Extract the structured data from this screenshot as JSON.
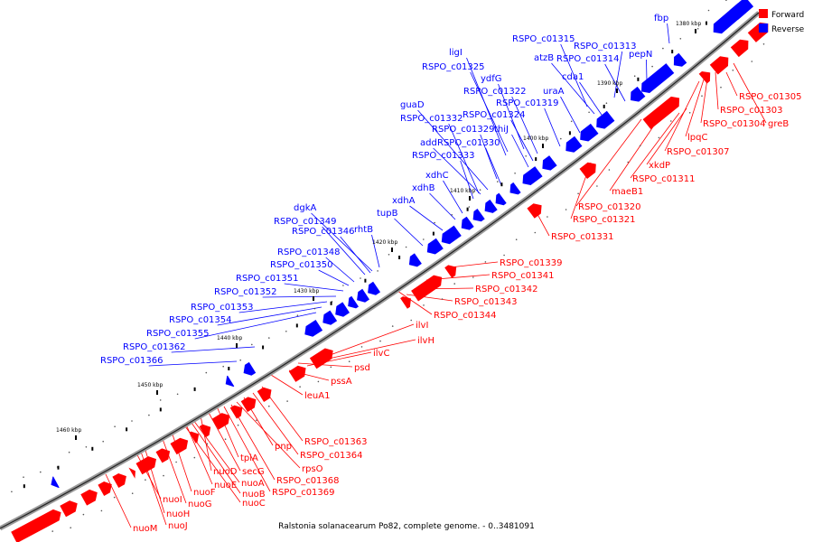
{
  "caption": "Ralstonia solanacearum Po82, complete genome. - 0..3481091",
  "legend": {
    "forward_label": "Forward",
    "reverse_label": "Reverse",
    "forward_color": "#ff0000",
    "reverse_color": "#0000ff"
  },
  "ticks": [
    "1380 kbp",
    "1390 kbp",
    "1400 kbp",
    "1410 kbp",
    "1420 kbp",
    "1430 kbp",
    "1440 kbp",
    "1450 kbp",
    "1460 kbp"
  ],
  "reverse_labels": [
    "fbp",
    "pepN",
    "RSPO_c01315",
    "RSPO_c01313",
    "atzB",
    "RSPO_c01314",
    "ligI",
    "RSPO_c01325",
    "ydfG",
    "cda1",
    "RSPO_c01322",
    "uraA",
    "RSPO_c01319",
    "RSPO_c01324",
    "guaD",
    "RSPO_c01332",
    "thiJ",
    "RSPO_c01329",
    "add",
    "RSPO_c01330",
    "RSPO_c01333",
    "xdhC",
    "xdhB",
    "xdhA",
    "tupB",
    "dgkA",
    "RSPO_c01349",
    "rhtB",
    "RSPO_c01346",
    "RSPO_c01348",
    "RSPO_c01350",
    "RSPO_c01351",
    "RSPO_c01352",
    "RSPO_c01353",
    "RSPO_c01354",
    "RSPO_c01355",
    "RSPO_c01362",
    "RSPO_c01366"
  ],
  "forward_labels": [
    "RSPO_c01305",
    "RSPO_c01303",
    "greB",
    "RSPO_c01304",
    "lpqC",
    "RSPO_c01307",
    "xkdP",
    "RSPO_c01311",
    "maeB1",
    "RSPO_c01320",
    "RSPO_c01321",
    "RSPO_c01331",
    "RSPO_c01339",
    "RSPO_c01341",
    "RSPO_c01342",
    "RSPO_c01343",
    "RSPO_c01344",
    "ilvI",
    "ilvH",
    "ilvC",
    "psd",
    "pssA",
    "leuA1",
    "RSPO_c01363",
    "pnp",
    "RSPO_c01364",
    "rpsO",
    "tpiA",
    "secG",
    "nuoD",
    "RSPO_c01368",
    "nuoA",
    "nuoE",
    "nuoB",
    "RSPO_c01369",
    "nuoF",
    "nuoC",
    "nuoI",
    "nuoG",
    "nuoH",
    "nuoJ",
    "nuoM"
  ]
}
